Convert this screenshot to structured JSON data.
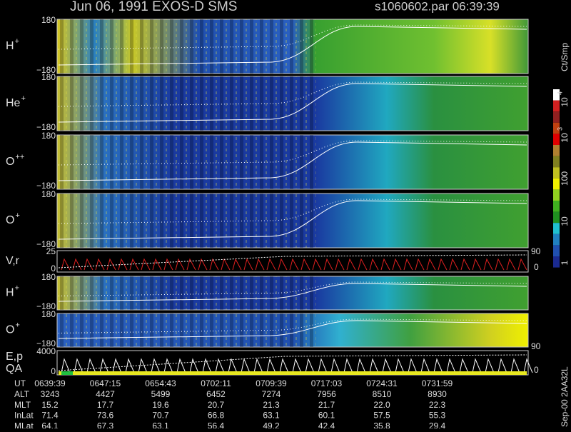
{
  "header": {
    "title": "Jun 06, 1991   EXOS-D SMS",
    "file": "s1060602.par  06:39:39"
  },
  "panels": [
    {
      "label": "H",
      "sup": "+",
      "top": "180",
      "bottom": "−180"
    },
    {
      "label": "He",
      "sup": "+",
      "top": "180",
      "bottom": "−180"
    },
    {
      "label": "O",
      "sup": "++",
      "top": "180",
      "bottom": "−180"
    },
    {
      "label": "O",
      "sup": "+",
      "top": "180",
      "bottom": "−180"
    },
    {
      "label": "V,r",
      "top": "25",
      "bottom": "0",
      "right_top": "90",
      "right_bottom": "0"
    },
    {
      "label": "H",
      "sup": "+",
      "top": "180",
      "bottom": "−180"
    },
    {
      "label": "O",
      "sup": "+",
      "top": "180",
      "bottom": "−180",
      "right_top": "90"
    },
    {
      "label": "E,p",
      "label2": "QA",
      "top": "4000",
      "bottom": "0",
      "right_bottom": "0"
    }
  ],
  "colorbar": {
    "title": "Ct/Smp",
    "labels": [
      {
        "text": "10",
        "sup": "4"
      },
      {
        "text": "10",
        "sup": "3"
      },
      {
        "text": "100"
      },
      {
        "text": "10"
      },
      {
        "text": "1"
      }
    ]
  },
  "footnote": "Sep-00  2AA32L",
  "table": {
    "rows": [
      [
        "UT",
        "0639:39",
        "0647:15",
        "0654:43",
        "0702:11",
        "0709:39",
        "0717:03",
        "0724:31",
        "0731:59"
      ],
      [
        "ALT",
        "3243",
        "4427",
        "5499",
        "6452",
        "7274",
        "7956",
        "8510",
        "8930"
      ],
      [
        "MLT",
        "15.2",
        "17.7",
        "19.6",
        "20.7",
        "21.3",
        "21.7",
        "22.0",
        "22.3"
      ],
      [
        "InLat",
        "71.4",
        "73.6",
        "70.7",
        "66.8",
        "63.1",
        "60.1",
        "57.5",
        "55.3"
      ],
      [
        "MLat",
        "64.1",
        "67.3",
        "63.1",
        "56.4",
        "49.2",
        "42.4",
        "35.8",
        "29.4"
      ]
    ]
  }
}
